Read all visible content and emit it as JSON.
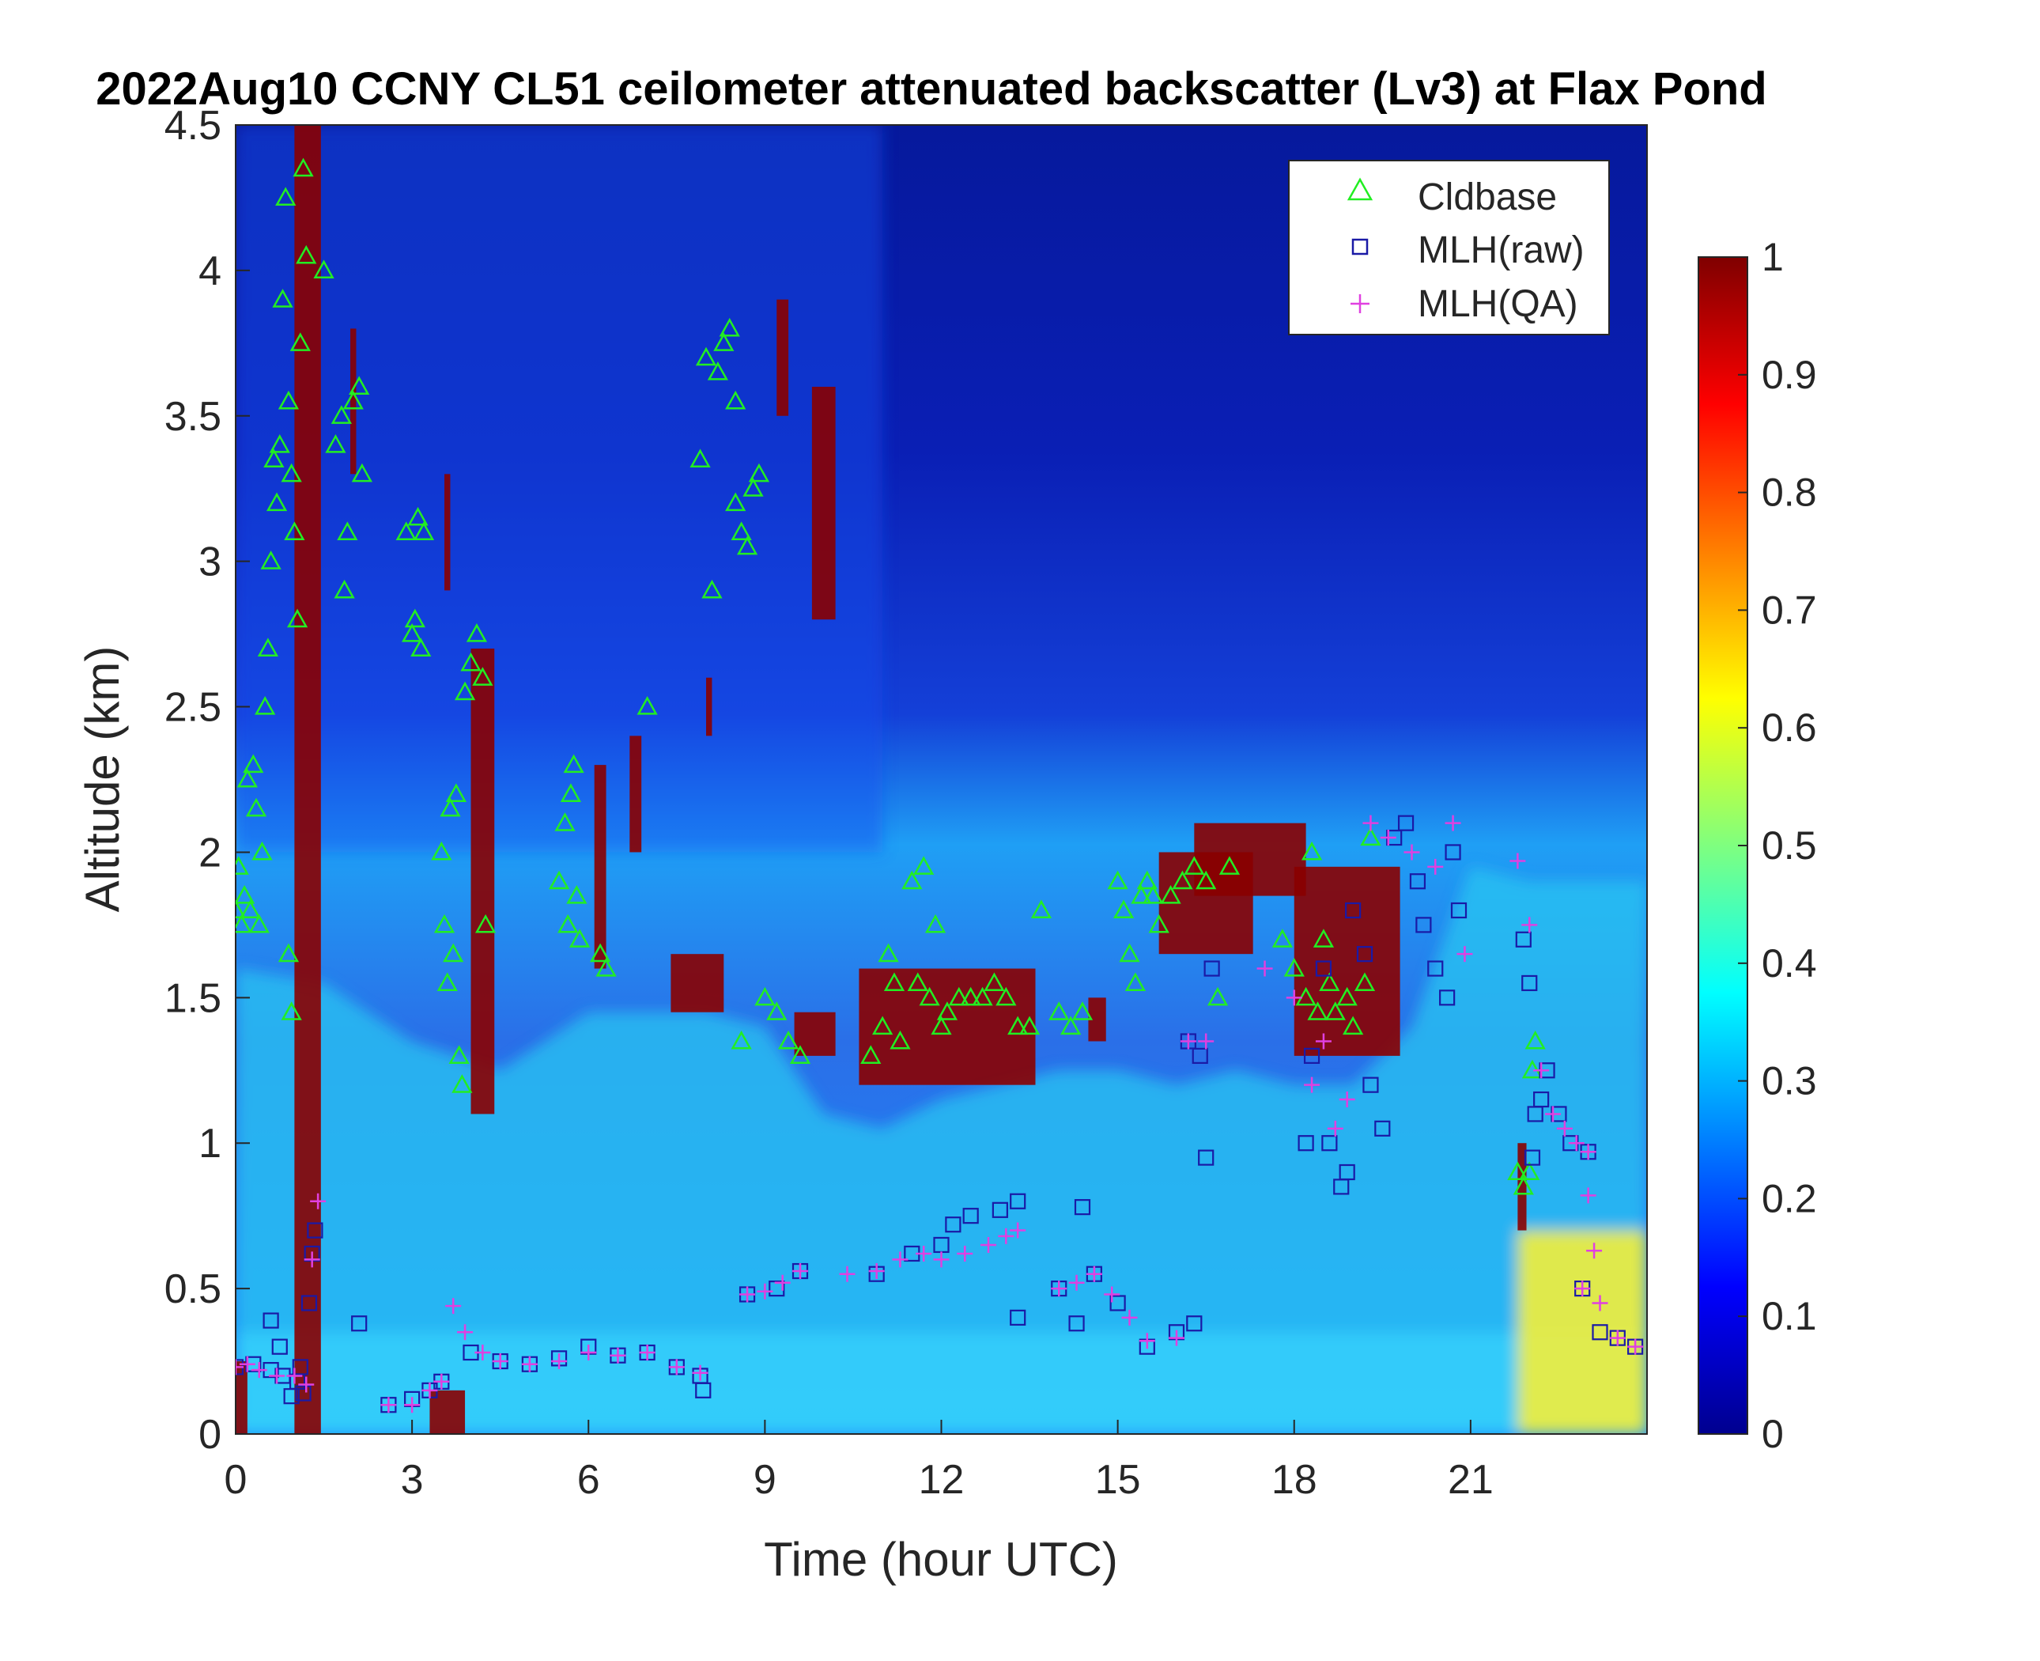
{
  "chart_data": {
    "type": "heatmap",
    "title": "2022Aug10 CCNY CL51 ceilometer attenuated backscatter (Lv3) at Flax Pond",
    "xlabel": "Time (hour UTC)",
    "ylabel": "Altitude (km)",
    "xlim": [
      0,
      24
    ],
    "ylim": [
      0,
      4.5
    ],
    "xticks": [
      0,
      3,
      6,
      9,
      12,
      15,
      18,
      21
    ],
    "xtick_labels": [
      "0",
      "3",
      "6",
      "9",
      "12",
      "15",
      "18",
      "21"
    ],
    "yticks": [
      0,
      0.5,
      1,
      1.5,
      2,
      2.5,
      3,
      3.5,
      4,
      4.5
    ],
    "ytick_labels": [
      "0",
      "0.5",
      "1",
      "1.5",
      "2",
      "2.5",
      "3",
      "3.5",
      "4",
      "4.5"
    ],
    "colorbar": {
      "colormap": "jet",
      "range": [
        0,
        1
      ],
      "ticks": [
        0,
        0.1,
        0.2,
        0.3,
        0.4,
        0.5,
        0.6,
        0.7,
        0.8,
        0.9,
        1
      ],
      "tick_labels": [
        "0",
        "0.1",
        "0.2",
        "0.3",
        "0.4",
        "0.5",
        "0.6",
        "0.7",
        "0.8",
        "0.9",
        "1"
      ]
    },
    "legend": {
      "placement": "top-right",
      "entries": [
        {
          "label": "Cldbase",
          "marker": "triangle",
          "color": "#22ee22"
        },
        {
          "label": "MLH(raw)",
          "marker": "square",
          "color": "#1a1aa6"
        },
        {
          "label": "MLH(QA)",
          "marker": "plus",
          "color": "#e040e0"
        }
      ]
    },
    "series": [
      {
        "name": "Cldbase",
        "points": [
          [
            0.0,
            1.8
          ],
          [
            0.05,
            1.95
          ],
          [
            0.1,
            1.75
          ],
          [
            0.15,
            1.85
          ],
          [
            0.2,
            2.25
          ],
          [
            0.25,
            1.8
          ],
          [
            0.3,
            2.3
          ],
          [
            0.35,
            2.15
          ],
          [
            0.4,
            1.75
          ],
          [
            0.45,
            2.0
          ],
          [
            0.5,
            2.5
          ],
          [
            0.55,
            2.7
          ],
          [
            0.6,
            3.0
          ],
          [
            0.65,
            3.35
          ],
          [
            0.7,
            3.2
          ],
          [
            0.75,
            3.4
          ],
          [
            0.8,
            3.9
          ],
          [
            0.85,
            4.25
          ],
          [
            0.9,
            3.55
          ],
          [
            0.95,
            3.3
          ],
          [
            1.0,
            3.1
          ],
          [
            1.05,
            2.8
          ],
          [
            1.1,
            3.75
          ],
          [
            1.15,
            4.35
          ],
          [
            1.2,
            4.05
          ],
          [
            0.9,
            1.65
          ],
          [
            0.95,
            1.45
          ],
          [
            1.5,
            4.0
          ],
          [
            1.7,
            3.4
          ],
          [
            1.8,
            3.5
          ],
          [
            1.85,
            2.9
          ],
          [
            1.9,
            3.1
          ],
          [
            2.0,
            3.55
          ],
          [
            2.1,
            3.6
          ],
          [
            2.15,
            3.3
          ],
          [
            2.9,
            3.1
          ],
          [
            3.0,
            2.75
          ],
          [
            3.05,
            2.8
          ],
          [
            3.1,
            3.15
          ],
          [
            3.15,
            2.7
          ],
          [
            3.2,
            3.1
          ],
          [
            3.5,
            2.0
          ],
          [
            3.55,
            1.75
          ],
          [
            3.6,
            1.55
          ],
          [
            3.65,
            2.15
          ],
          [
            3.7,
            1.65
          ],
          [
            3.75,
            2.2
          ],
          [
            3.8,
            1.3
          ],
          [
            3.85,
            1.2
          ],
          [
            3.9,
            2.55
          ],
          [
            4.0,
            2.65
          ],
          [
            4.1,
            2.75
          ],
          [
            4.2,
            2.6
          ],
          [
            4.25,
            1.75
          ],
          [
            5.5,
            1.9
          ],
          [
            5.6,
            2.1
          ],
          [
            5.65,
            1.75
          ],
          [
            5.7,
            2.2
          ],
          [
            5.75,
            2.3
          ],
          [
            5.8,
            1.85
          ],
          [
            5.85,
            1.7
          ],
          [
            6.2,
            1.65
          ],
          [
            6.3,
            1.6
          ],
          [
            7.0,
            2.5
          ],
          [
            7.9,
            3.35
          ],
          [
            8.1,
            2.9
          ],
          [
            8.0,
            3.7
          ],
          [
            8.2,
            3.65
          ],
          [
            8.3,
            3.75
          ],
          [
            8.4,
            3.8
          ],
          [
            8.5,
            3.55
          ],
          [
            8.5,
            3.2
          ],
          [
            8.6,
            3.1
          ],
          [
            8.7,
            3.05
          ],
          [
            8.8,
            3.25
          ],
          [
            8.9,
            3.3
          ],
          [
            8.6,
            1.35
          ],
          [
            9.0,
            1.5
          ],
          [
            9.2,
            1.45
          ],
          [
            9.4,
            1.35
          ],
          [
            9.6,
            1.3
          ],
          [
            10.8,
            1.3
          ],
          [
            11.0,
            1.4
          ],
          [
            11.1,
            1.65
          ],
          [
            11.2,
            1.55
          ],
          [
            11.3,
            1.35
          ],
          [
            11.5,
            1.9
          ],
          [
            11.6,
            1.55
          ],
          [
            11.7,
            1.95
          ],
          [
            11.8,
            1.5
          ],
          [
            11.9,
            1.75
          ],
          [
            12.0,
            1.4
          ],
          [
            12.1,
            1.45
          ],
          [
            12.3,
            1.5
          ],
          [
            12.5,
            1.5
          ],
          [
            12.7,
            1.5
          ],
          [
            12.9,
            1.55
          ],
          [
            13.1,
            1.5
          ],
          [
            13.3,
            1.4
          ],
          [
            13.5,
            1.4
          ],
          [
            13.7,
            1.8
          ],
          [
            14.0,
            1.45
          ],
          [
            14.2,
            1.4
          ],
          [
            14.4,
            1.45
          ],
          [
            15.0,
            1.9
          ],
          [
            15.1,
            1.8
          ],
          [
            15.2,
            1.65
          ],
          [
            15.3,
            1.55
          ],
          [
            15.4,
            1.85
          ],
          [
            15.5,
            1.9
          ],
          [
            15.6,
            1.85
          ],
          [
            15.7,
            1.75
          ],
          [
            15.9,
            1.85
          ],
          [
            16.1,
            1.9
          ],
          [
            16.3,
            1.95
          ],
          [
            16.5,
            1.9
          ],
          [
            16.7,
            1.5
          ],
          [
            16.9,
            1.95
          ],
          [
            17.8,
            1.7
          ],
          [
            18.0,
            1.6
          ],
          [
            18.2,
            1.5
          ],
          [
            18.3,
            2.0
          ],
          [
            18.4,
            1.45
          ],
          [
            18.5,
            1.7
          ],
          [
            18.6,
            1.55
          ],
          [
            18.7,
            1.45
          ],
          [
            18.9,
            1.5
          ],
          [
            19.0,
            1.4
          ],
          [
            19.2,
            1.55
          ],
          [
            19.3,
            2.05
          ],
          [
            21.8,
            0.9
          ],
          [
            21.9,
            0.85
          ],
          [
            22.0,
            0.9
          ],
          [
            22.05,
            1.25
          ],
          [
            22.1,
            1.35
          ]
        ]
      },
      {
        "name": "MLH(raw)",
        "points": [
          [
            0.0,
            0.23
          ],
          [
            0.3,
            0.24
          ],
          [
            0.6,
            0.22
          ],
          [
            0.8,
            0.2
          ],
          [
            0.95,
            0.13
          ],
          [
            1.05,
            0.18
          ],
          [
            1.1,
            0.23
          ],
          [
            1.15,
            0.14
          ],
          [
            1.25,
            0.45
          ],
          [
            1.3,
            0.62
          ],
          [
            1.35,
            0.7
          ],
          [
            0.75,
            0.3
          ],
          [
            0.6,
            0.39
          ],
          [
            2.1,
            0.38
          ],
          [
            2.6,
            0.1
          ],
          [
            3.0,
            0.12
          ],
          [
            3.3,
            0.15
          ],
          [
            3.5,
            0.18
          ],
          [
            4.0,
            0.28
          ],
          [
            4.5,
            0.25
          ],
          [
            5.0,
            0.24
          ],
          [
            5.5,
            0.26
          ],
          [
            6.0,
            0.3
          ],
          [
            6.5,
            0.27
          ],
          [
            7.0,
            0.28
          ],
          [
            7.5,
            0.23
          ],
          [
            7.9,
            0.2
          ],
          [
            7.95,
            0.15
          ],
          [
            8.7,
            0.48
          ],
          [
            9.2,
            0.5
          ],
          [
            9.6,
            0.56
          ],
          [
            10.9,
            0.55
          ],
          [
            11.5,
            0.62
          ],
          [
            12.0,
            0.65
          ],
          [
            12.2,
            0.72
          ],
          [
            12.5,
            0.75
          ],
          [
            13.0,
            0.77
          ],
          [
            13.3,
            0.8
          ],
          [
            13.3,
            0.4
          ],
          [
            14.0,
            0.5
          ],
          [
            14.3,
            0.38
          ],
          [
            14.4,
            0.78
          ],
          [
            14.6,
            0.55
          ],
          [
            15.0,
            0.45
          ],
          [
            15.5,
            0.3
          ],
          [
            16.0,
            0.35
          ],
          [
            16.3,
            0.38
          ],
          [
            16.2,
            1.35
          ],
          [
            16.4,
            1.3
          ],
          [
            16.6,
            1.6
          ],
          [
            16.5,
            0.95
          ],
          [
            18.2,
            1.0
          ],
          [
            18.3,
            1.3
          ],
          [
            18.5,
            1.6
          ],
          [
            18.6,
            1.0
          ],
          [
            18.8,
            0.85
          ],
          [
            18.9,
            0.9
          ],
          [
            19.0,
            1.8
          ],
          [
            19.2,
            1.65
          ],
          [
            19.3,
            1.2
          ],
          [
            19.5,
            1.05
          ],
          [
            19.7,
            2.05
          ],
          [
            19.9,
            2.1
          ],
          [
            20.1,
            1.9
          ],
          [
            20.2,
            1.75
          ],
          [
            20.4,
            1.6
          ],
          [
            20.6,
            1.5
          ],
          [
            20.7,
            2.0
          ],
          [
            20.8,
            1.8
          ],
          [
            21.9,
            1.7
          ],
          [
            22.0,
            1.55
          ],
          [
            22.05,
            0.95
          ],
          [
            22.1,
            1.1
          ],
          [
            22.2,
            1.15
          ],
          [
            22.3,
            1.25
          ],
          [
            22.5,
            1.1
          ],
          [
            22.7,
            1.0
          ],
          [
            23.0,
            0.97
          ],
          [
            22.9,
            0.5
          ],
          [
            23.2,
            0.35
          ],
          [
            23.5,
            0.33
          ],
          [
            23.8,
            0.3
          ]
        ]
      },
      {
        "name": "MLH(QA)",
        "points": [
          [
            0.0,
            0.23
          ],
          [
            0.2,
            0.24
          ],
          [
            0.4,
            0.22
          ],
          [
            0.7,
            0.2
          ],
          [
            1.0,
            0.2
          ],
          [
            1.2,
            0.17
          ],
          [
            1.4,
            0.8
          ],
          [
            1.3,
            0.6
          ],
          [
            2.6,
            0.1
          ],
          [
            3.0,
            0.1
          ],
          [
            3.3,
            0.15
          ],
          [
            3.5,
            0.18
          ],
          [
            3.7,
            0.44
          ],
          [
            3.9,
            0.35
          ],
          [
            4.2,
            0.28
          ],
          [
            4.5,
            0.25
          ],
          [
            5.0,
            0.24
          ],
          [
            5.5,
            0.25
          ],
          [
            6.0,
            0.28
          ],
          [
            6.5,
            0.27
          ],
          [
            7.0,
            0.28
          ],
          [
            7.5,
            0.23
          ],
          [
            7.9,
            0.21
          ],
          [
            8.7,
            0.48
          ],
          [
            9.0,
            0.49
          ],
          [
            9.3,
            0.52
          ],
          [
            9.6,
            0.56
          ],
          [
            10.4,
            0.55
          ],
          [
            10.9,
            0.56
          ],
          [
            11.3,
            0.6
          ],
          [
            11.7,
            0.62
          ],
          [
            12.0,
            0.6
          ],
          [
            12.4,
            0.62
          ],
          [
            12.8,
            0.65
          ],
          [
            13.1,
            0.68
          ],
          [
            13.3,
            0.7
          ],
          [
            14.0,
            0.5
          ],
          [
            14.3,
            0.52
          ],
          [
            14.6,
            0.55
          ],
          [
            14.9,
            0.48
          ],
          [
            15.2,
            0.4
          ],
          [
            15.5,
            0.32
          ],
          [
            16.0,
            0.33
          ],
          [
            16.2,
            1.35
          ],
          [
            16.5,
            1.35
          ],
          [
            17.5,
            1.6
          ],
          [
            18.0,
            1.5
          ],
          [
            18.3,
            1.2
          ],
          [
            18.5,
            1.35
          ],
          [
            18.7,
            1.05
          ],
          [
            18.9,
            1.15
          ],
          [
            19.3,
            2.1
          ],
          [
            19.6,
            2.05
          ],
          [
            20.0,
            2.0
          ],
          [
            20.4,
            1.95
          ],
          [
            20.7,
            2.1
          ],
          [
            20.9,
            1.65
          ],
          [
            21.8,
            1.97
          ],
          [
            22.0,
            1.75
          ],
          [
            22.2,
            1.25
          ],
          [
            22.4,
            1.1
          ],
          [
            22.6,
            1.05
          ],
          [
            22.8,
            1.0
          ],
          [
            23.0,
            0.97
          ],
          [
            23.0,
            0.82
          ],
          [
            23.1,
            0.63
          ],
          [
            22.9,
            0.5
          ],
          [
            23.2,
            0.45
          ],
          [
            23.5,
            0.33
          ],
          [
            23.8,
            0.3
          ]
        ]
      }
    ]
  }
}
